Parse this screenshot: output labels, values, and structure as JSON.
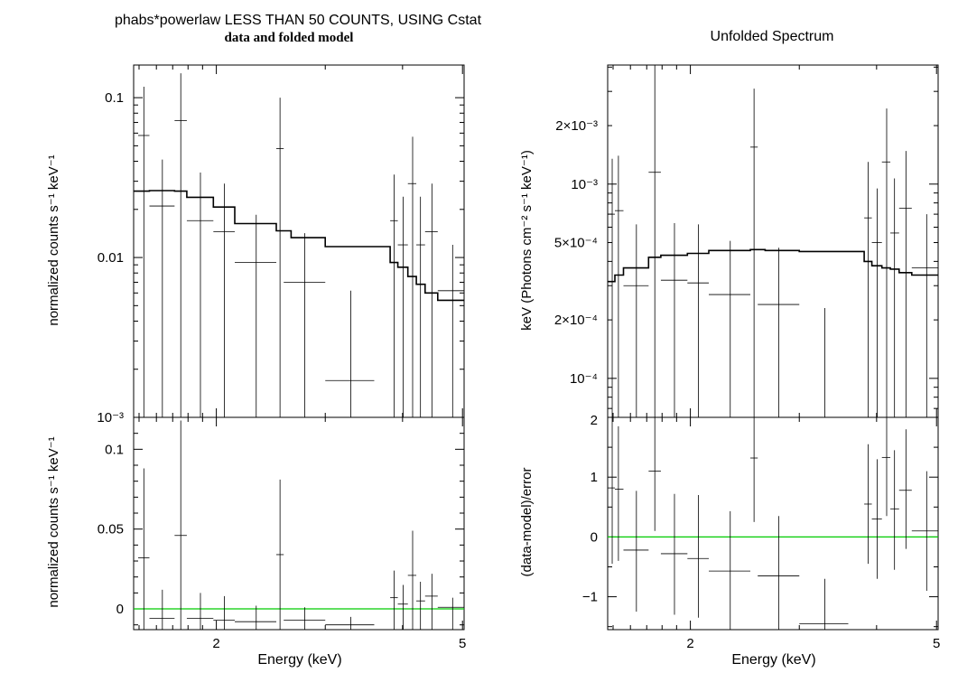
{
  "titles": {
    "left_line1": "phabs*powerlaw LESS THAN 50 COUNTS, USING Cstat",
    "left_line2": "data and folded model",
    "right": "Unfolded Spectrum"
  },
  "colors": {
    "axes": "#000000",
    "data": "#000000",
    "model": "#000000",
    "zero_line": "#00cc00"
  },
  "chart_data": [
    {
      "id": "tl",
      "type": "scatter",
      "title": "data and folded model",
      "xlabel": "",
      "ylabel": "normalized counts s⁻¹ keV⁻¹",
      "xscale": "log",
      "yscale": "log",
      "xlim": [
        1.47,
        5.03
      ],
      "ylim": [
        0.001,
        0.16
      ],
      "yticks": [
        {
          "v": 0.001,
          "label": "10⁻³"
        },
        {
          "v": 0.01,
          "label": "0.01"
        },
        {
          "v": 0.1,
          "label": "0.1"
        }
      ],
      "xticks": [],
      "data": [
        {
          "x": 1.527,
          "xlo": 1.495,
          "xhi": 1.559,
          "y": 0.058,
          "ylo": 0.001,
          "yhi": 0.117
        },
        {
          "x": 1.636,
          "xlo": 1.559,
          "xhi": 1.712,
          "y": 0.021,
          "ylo": 0.001,
          "yhi": 0.041
        },
        {
          "x": 1.752,
          "xlo": 1.712,
          "xhi": 1.792,
          "y": 0.072,
          "ylo": 0.001,
          "yhi": 0.142
        },
        {
          "x": 1.885,
          "xlo": 1.792,
          "xhi": 1.978,
          "y": 0.017,
          "ylo": 0.001,
          "yhi": 0.034
        },
        {
          "x": 2.06,
          "xlo": 1.978,
          "xhi": 2.142,
          "y": 0.0145,
          "ylo": 0.001,
          "yhi": 0.029
        },
        {
          "x": 2.32,
          "xlo": 2.142,
          "xhi": 2.5,
          "y": 0.0093,
          "ylo": 0.001,
          "yhi": 0.0185
        },
        {
          "x": 2.535,
          "xlo": 2.5,
          "xhi": 2.57,
          "y": 0.048,
          "ylo": 0.001,
          "yhi": 0.1
        },
        {
          "x": 2.78,
          "xlo": 2.57,
          "xhi": 3.0,
          "y": 0.007,
          "ylo": 0.001,
          "yhi": 0.0142
        },
        {
          "x": 3.3,
          "xlo": 3.0,
          "xhi": 3.6,
          "y": 0.0017,
          "ylo": 0.001,
          "yhi": 0.0062
        },
        {
          "x": 3.877,
          "xlo": 3.82,
          "xhi": 3.93,
          "y": 0.017,
          "ylo": 0.001,
          "yhi": 0.033
        },
        {
          "x": 4.01,
          "xlo": 3.93,
          "xhi": 4.08,
          "y": 0.012,
          "ylo": 0.001,
          "yhi": 0.024
        },
        {
          "x": 4.153,
          "xlo": 4.08,
          "xhi": 4.21,
          "y": 0.029,
          "ylo": 0.001,
          "yhi": 0.057
        },
        {
          "x": 4.276,
          "xlo": 4.21,
          "xhi": 4.35,
          "y": 0.012,
          "ylo": 0.001,
          "yhi": 0.024
        },
        {
          "x": 4.462,
          "xlo": 4.35,
          "xhi": 4.56,
          "y": 0.0145,
          "ylo": 0.001,
          "yhi": 0.029
        },
        {
          "x": 4.82,
          "xlo": 4.56,
          "xhi": 5.03,
          "y": 0.0062,
          "ylo": 0.001,
          "yhi": 0.012
        }
      ],
      "model": {
        "edges": [
          1.47,
          1.559,
          1.712,
          1.792,
          1.978,
          2.142,
          2.5,
          2.642,
          3.0,
          3.6,
          3.82,
          3.93,
          4.08,
          4.21,
          4.35,
          4.56,
          5.03
        ],
        "values": [
          0.026,
          0.0262,
          0.026,
          0.0238,
          0.0207,
          0.0163,
          0.0147,
          0.0133,
          0.0117,
          0.0117,
          0.0093,
          0.0087,
          0.0076,
          0.0068,
          0.006,
          0.0054
        ]
      }
    },
    {
      "id": "bl",
      "type": "scatter",
      "xlabel": "Energy (keV)",
      "ylabel": "normalized counts s⁻¹ keV⁻¹",
      "xscale": "log",
      "yscale": "linear",
      "xlim": [
        1.47,
        5.03
      ],
      "ylim": [
        -0.013,
        0.12
      ],
      "yticks": [
        {
          "v": 0,
          "label": "0"
        },
        {
          "v": 0.05,
          "label": "0.05"
        },
        {
          "v": 0.1,
          "label": "0.1"
        }
      ],
      "xticks": [
        {
          "v": 2,
          "label": "2"
        },
        {
          "v": 5,
          "label": "5"
        }
      ],
      "zero_line": 0,
      "data": [
        {
          "x": 1.527,
          "xlo": 1.495,
          "xhi": 1.559,
          "y": 0.032,
          "ylo": -0.013,
          "yhi": 0.088
        },
        {
          "x": 1.636,
          "xlo": 1.559,
          "xhi": 1.712,
          "y": -0.006,
          "ylo": -0.013,
          "yhi": 0.012
        },
        {
          "x": 1.752,
          "xlo": 1.712,
          "xhi": 1.792,
          "y": 0.046,
          "ylo": -0.013,
          "yhi": 0.118
        },
        {
          "x": 1.885,
          "xlo": 1.792,
          "xhi": 1.978,
          "y": -0.006,
          "ylo": -0.013,
          "yhi": 0.01
        },
        {
          "x": 2.06,
          "xlo": 1.978,
          "xhi": 2.142,
          "y": -0.007,
          "ylo": -0.013,
          "yhi": 0.008
        },
        {
          "x": 2.32,
          "xlo": 2.142,
          "xhi": 2.5,
          "y": -0.008,
          "ylo": -0.013,
          "yhi": 0.002
        },
        {
          "x": 2.535,
          "xlo": 2.5,
          "xhi": 2.57,
          "y": 0.034,
          "ylo": -0.013,
          "yhi": 0.081
        },
        {
          "x": 2.78,
          "xlo": 2.57,
          "xhi": 3.0,
          "y": -0.007,
          "ylo": -0.013,
          "yhi": 0.001
        },
        {
          "x": 3.3,
          "xlo": 3.0,
          "xhi": 3.6,
          "y": -0.01,
          "ylo": -0.013,
          "yhi": -0.005
        },
        {
          "x": 3.877,
          "xlo": 3.82,
          "xhi": 3.93,
          "y": 0.007,
          "ylo": -0.013,
          "yhi": 0.024
        },
        {
          "x": 4.01,
          "xlo": 3.93,
          "xhi": 4.08,
          "y": 0.003,
          "ylo": -0.013,
          "yhi": 0.015
        },
        {
          "x": 4.153,
          "xlo": 4.08,
          "xhi": 4.21,
          "y": 0.021,
          "ylo": -0.013,
          "yhi": 0.049
        },
        {
          "x": 4.276,
          "xlo": 4.21,
          "xhi": 4.35,
          "y": 0.005,
          "ylo": -0.013,
          "yhi": 0.017
        },
        {
          "x": 4.462,
          "xlo": 4.35,
          "xhi": 4.56,
          "y": 0.008,
          "ylo": -0.013,
          "yhi": 0.022
        },
        {
          "x": 4.82,
          "xlo": 4.56,
          "xhi": 5.03,
          "y": 0.001,
          "ylo": -0.013,
          "yhi": 0.007
        }
      ]
    },
    {
      "id": "tr",
      "type": "scatter",
      "title": "Unfolded Spectrum",
      "xlabel": "",
      "ylabel": "keV (Photons cm⁻² s⁻¹ keV⁻¹)",
      "xscale": "log",
      "yscale": "log",
      "xlim": [
        1.47,
        5.03
      ],
      "ylim": [
        6.3e-05,
        0.0041
      ],
      "yticks": [
        {
          "v": 0.0001,
          "label": "10⁻⁴"
        },
        {
          "v": 0.0002,
          "label": "2×10⁻⁴"
        },
        {
          "v": 0.0005,
          "label": "5×10⁻⁴"
        },
        {
          "v": 0.001,
          "label": "10⁻³"
        },
        {
          "v": 0.002,
          "label": "2×10⁻³"
        }
      ],
      "xticks": [],
      "data": [
        {
          "x": 1.495,
          "xlo": 1.47,
          "xhi": 1.51,
          "y": 0.0007,
          "ylo": 6.3e-05,
          "yhi": 0.00135
        },
        {
          "x": 1.53,
          "xlo": 1.51,
          "xhi": 1.559,
          "y": 0.00073,
          "ylo": 6.3e-05,
          "yhi": 0.0014
        },
        {
          "x": 1.636,
          "xlo": 1.559,
          "xhi": 1.712,
          "y": 0.0003,
          "ylo": 6.3e-05,
          "yhi": 0.00062
        },
        {
          "x": 1.752,
          "xlo": 1.712,
          "xhi": 1.792,
          "y": 0.00115,
          "ylo": 6.3e-05,
          "yhi": 0.0041
        },
        {
          "x": 1.885,
          "xlo": 1.792,
          "xhi": 1.978,
          "y": 0.00032,
          "ylo": 6.3e-05,
          "yhi": 0.00063
        },
        {
          "x": 2.06,
          "xlo": 1.978,
          "xhi": 2.142,
          "y": 0.00031,
          "ylo": 6.3e-05,
          "yhi": 0.00062
        },
        {
          "x": 2.32,
          "xlo": 2.142,
          "xhi": 2.5,
          "y": 0.00027,
          "ylo": 6.3e-05,
          "yhi": 0.00051
        },
        {
          "x": 2.535,
          "xlo": 2.5,
          "xhi": 2.57,
          "y": 0.00155,
          "ylo": 6.3e-05,
          "yhi": 0.0031
        },
        {
          "x": 2.78,
          "xlo": 2.57,
          "xhi": 3.0,
          "y": 0.00024,
          "ylo": 6.3e-05,
          "yhi": 0.00047
        },
        {
          "x": 3.3,
          "xlo": 3.0,
          "xhi": 3.6,
          "y": 6.3e-05,
          "ylo": 6.3e-05,
          "yhi": 0.00023
        },
        {
          "x": 3.877,
          "xlo": 3.82,
          "xhi": 3.93,
          "y": 0.00067,
          "ylo": 6.3e-05,
          "yhi": 0.0013
        },
        {
          "x": 4.01,
          "xlo": 3.93,
          "xhi": 4.08,
          "y": 0.0005,
          "ylo": 6.3e-05,
          "yhi": 0.00095
        },
        {
          "x": 4.153,
          "xlo": 4.08,
          "xhi": 4.21,
          "y": 0.0013,
          "ylo": 6.3e-05,
          "yhi": 0.00245
        },
        {
          "x": 4.276,
          "xlo": 4.21,
          "xhi": 4.35,
          "y": 0.00056,
          "ylo": 6.3e-05,
          "yhi": 0.00107
        },
        {
          "x": 4.462,
          "xlo": 4.35,
          "xhi": 4.56,
          "y": 0.00075,
          "ylo": 6.3e-05,
          "yhi": 0.00148
        },
        {
          "x": 4.82,
          "xlo": 4.56,
          "xhi": 5.03,
          "y": 0.00037,
          "ylo": 6.3e-05,
          "yhi": 0.0007
        }
      ],
      "model": {
        "edges": [
          1.47,
          1.51,
          1.559,
          1.712,
          1.792,
          1.978,
          2.142,
          2.5,
          2.642,
          3.0,
          3.6,
          3.82,
          3.93,
          4.08,
          4.21,
          4.35,
          4.56,
          5.03
        ],
        "values": [
          0.000315,
          0.00034,
          0.00037,
          0.00042,
          0.00043,
          0.00044,
          0.000455,
          0.00046,
          0.000455,
          0.00045,
          0.00045,
          0.0004,
          0.00038,
          0.00037,
          0.000365,
          0.00035,
          0.00034
        ]
      }
    },
    {
      "id": "br",
      "type": "scatter",
      "xlabel": "Energy (keV)",
      "ylabel": "(data-model)/error",
      "xscale": "log",
      "yscale": "linear",
      "xlim": [
        1.47,
        5.03
      ],
      "ylim": [
        -1.55,
        2.0
      ],
      "yticks": [
        {
          "v": -1,
          "label": "−1"
        },
        {
          "v": 0,
          "label": "0"
        },
        {
          "v": 1,
          "label": "1"
        },
        {
          "v": 2,
          "label": "2"
        }
      ],
      "xticks": [
        {
          "v": 2,
          "label": "2"
        },
        {
          "v": 5,
          "label": "5"
        }
      ],
      "zero_line": 0,
      "data": [
        {
          "x": 1.495,
          "xlo": 1.47,
          "xhi": 1.51,
          "y": 0.82,
          "ylo": -0.45,
          "yhi": 2.0
        },
        {
          "x": 1.53,
          "xlo": 1.51,
          "xhi": 1.559,
          "y": 0.8,
          "ylo": -0.4,
          "yhi": 1.85
        },
        {
          "x": 1.636,
          "xlo": 1.559,
          "xhi": 1.712,
          "y": -0.22,
          "ylo": -1.25,
          "yhi": 0.77
        },
        {
          "x": 1.752,
          "xlo": 1.712,
          "xhi": 1.792,
          "y": 1.1,
          "ylo": 0.1,
          "yhi": 2.0
        },
        {
          "x": 1.885,
          "xlo": 1.792,
          "xhi": 1.978,
          "y": -0.28,
          "ylo": -1.3,
          "yhi": 0.72
        },
        {
          "x": 2.06,
          "xlo": 1.978,
          "xhi": 2.142,
          "y": -0.36,
          "ylo": -1.35,
          "yhi": 0.7
        },
        {
          "x": 2.32,
          "xlo": 2.142,
          "xhi": 2.5,
          "y": -0.57,
          "ylo": -1.55,
          "yhi": 0.43
        },
        {
          "x": 2.535,
          "xlo": 2.5,
          "xhi": 2.57,
          "y": 1.32,
          "ylo": 0.25,
          "yhi": 2.0
        },
        {
          "x": 2.78,
          "xlo": 2.57,
          "xhi": 3.0,
          "y": -0.65,
          "ylo": -1.55,
          "yhi": 0.35
        },
        {
          "x": 3.3,
          "xlo": 3.0,
          "xhi": 3.6,
          "y": -1.45,
          "ylo": -1.55,
          "yhi": -0.7
        },
        {
          "x": 3.877,
          "xlo": 3.82,
          "xhi": 3.93,
          "y": 0.55,
          "ylo": -0.45,
          "yhi": 1.55
        },
        {
          "x": 4.01,
          "xlo": 3.93,
          "xhi": 4.08,
          "y": 0.3,
          "ylo": -0.7,
          "yhi": 1.3
        },
        {
          "x": 4.153,
          "xlo": 4.08,
          "xhi": 4.21,
          "y": 1.33,
          "ylo": 0.35,
          "yhi": 2.0
        },
        {
          "x": 4.276,
          "xlo": 4.21,
          "xhi": 4.35,
          "y": 0.47,
          "ylo": -0.55,
          "yhi": 1.45
        },
        {
          "x": 4.462,
          "xlo": 4.35,
          "xhi": 4.56,
          "y": 0.78,
          "ylo": -0.2,
          "yhi": 1.8
        },
        {
          "x": 4.82,
          "xlo": 4.56,
          "xhi": 5.03,
          "y": 0.1,
          "ylo": -0.9,
          "yhi": 1.1
        }
      ]
    }
  ]
}
